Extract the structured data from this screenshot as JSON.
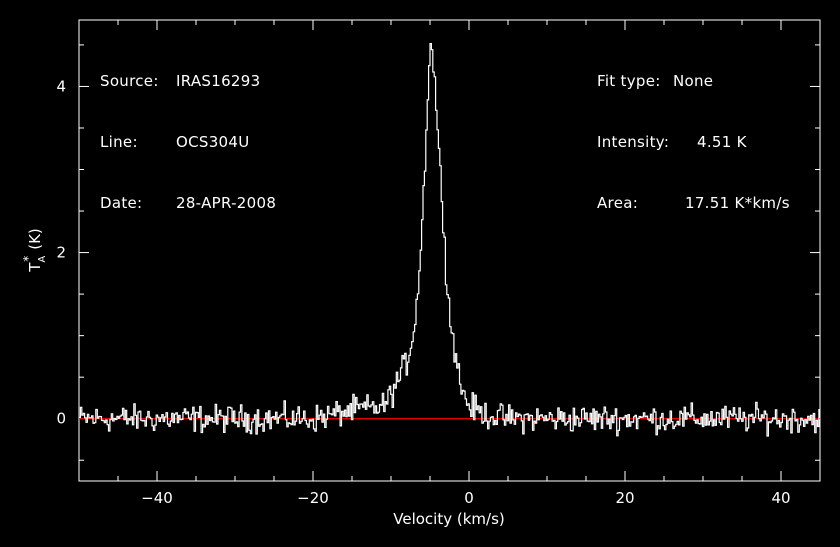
{
  "chart_data": {
    "type": "line",
    "xlabel": "Velocity (km/s)",
    "ylabel_main": "T",
    "ylabel_sub": "A",
    "ylabel_sup": "*",
    "ylabel_unit": "(K)",
    "xlim": [
      -50,
      45
    ],
    "ylim": [
      -0.75,
      4.8
    ],
    "x_ticks": [
      -40,
      -20,
      0,
      20,
      40
    ],
    "x_tick_labels": [
      "−40",
      "−20",
      "0",
      "20",
      "40"
    ],
    "y_ticks": [
      0,
      2,
      4
    ],
    "y_tick_labels": [
      "0",
      "2",
      "4"
    ],
    "baseline": 0,
    "baseline_color": "#e00000",
    "line_color": "#ffffff",
    "background": "#000000",
    "series": [
      {
        "values_description_source": "spectrum",
        "x": [
          -50,
          -45,
          -40,
          -35,
          -30,
          -25,
          -20,
          -15,
          -11,
          -10,
          -9,
          -8,
          -7.5,
          -7,
          -6.5,
          -6,
          -5.5,
          -5.2,
          -5,
          -4.8,
          -4.5,
          -4.2,
          -4,
          -3.8,
          -3.5,
          -3.2,
          -3,
          -2.8,
          -2.5,
          -2,
          -1.5,
          -1,
          0,
          2,
          5,
          10,
          15,
          20,
          25,
          30,
          35,
          40,
          45
        ],
        "y": [
          0,
          0,
          0,
          0,
          0,
          0,
          0,
          0.1,
          0.15,
          0.3,
          0.5,
          0.7,
          0.9,
          1.2,
          1.7,
          2.5,
          3.6,
          4.3,
          4.51,
          4.4,
          4.1,
          3.7,
          3.3,
          3.0,
          2.6,
          2.2,
          1.8,
          1.5,
          1.2,
          0.9,
          0.6,
          0.35,
          0.15,
          0.05,
          0,
          0,
          0,
          0,
          0,
          0,
          0,
          0,
          0
        ]
      }
    ]
  },
  "annotations": {
    "left": [
      {
        "label": "Source:",
        "value": "IRAS16293"
      },
      {
        "label": "Line:",
        "value": "OCS304U"
      },
      {
        "label": "Date:",
        "value": "28-APR-2008"
      }
    ],
    "right": [
      {
        "label": "Fit type:",
        "value": "None"
      },
      {
        "label": "Intensity:",
        "value": "4.51 K"
      },
      {
        "label": "Area:",
        "value": "17.51 K*km/s"
      }
    ]
  }
}
